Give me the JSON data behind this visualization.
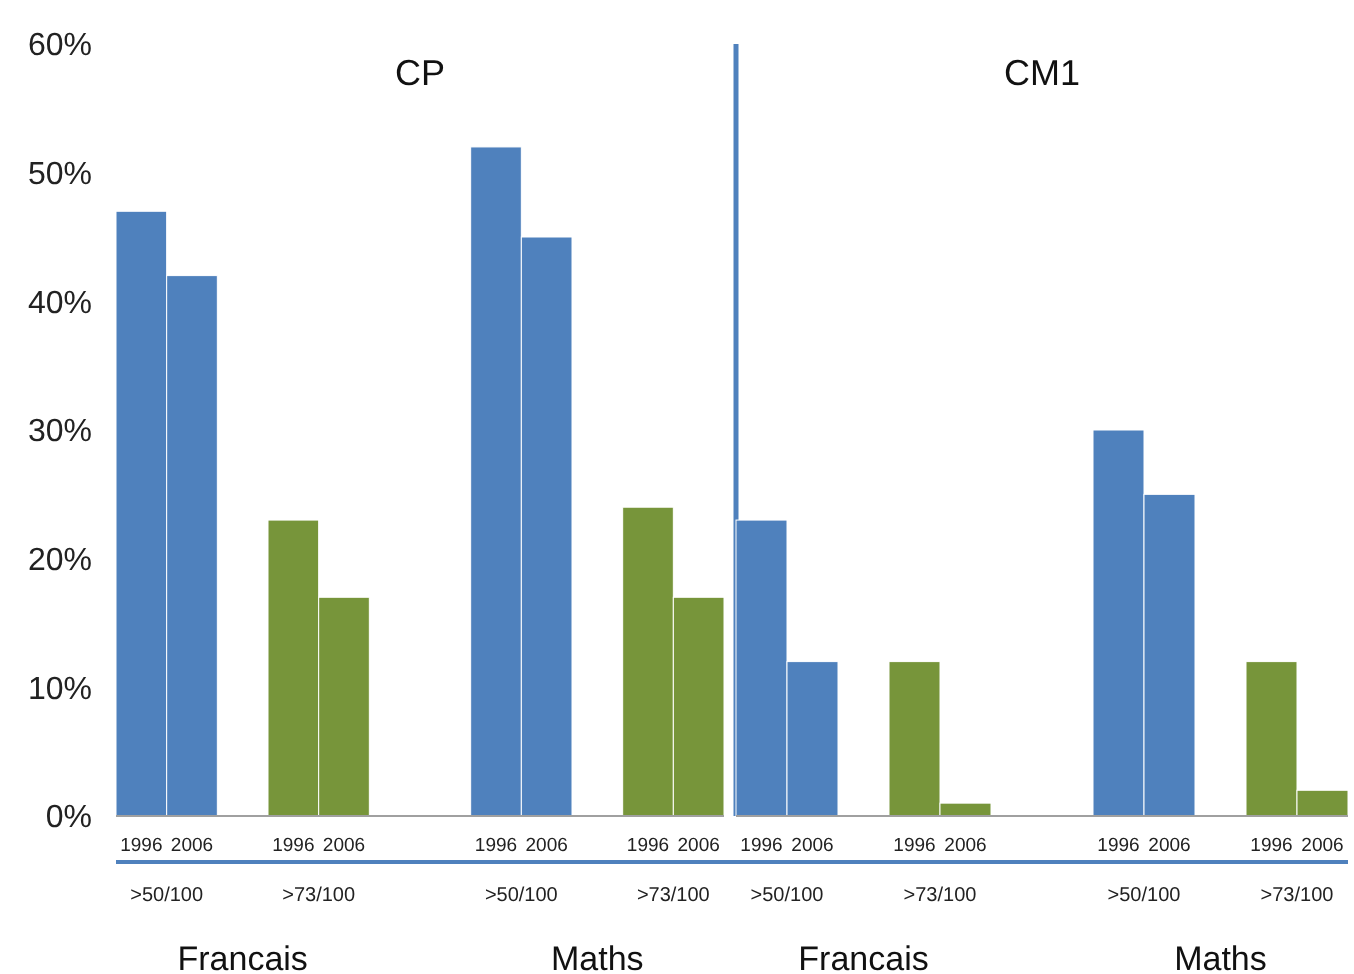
{
  "chart_data": [
    {
      "type": "bar",
      "title": "CP",
      "categories": [
        "1996",
        "2006",
        null,
        "1996",
        "2006",
        null,
        null,
        "1996",
        "2006",
        null,
        "1996",
        "2006"
      ],
      "values": [
        47,
        42,
        null,
        23,
        17,
        null,
        null,
        52,
        45,
        null,
        24,
        17
      ],
      "colors": [
        "#4f81bd",
        "#4f81bd",
        null,
        "#77953a",
        "#77953a",
        null,
        null,
        "#4f81bd",
        "#4f81bd",
        null,
        "#77953a",
        "#77953a"
      ],
      "ylim": [
        0,
        60
      ],
      "yticks": [
        {
          "value": 0,
          "label": "0%"
        },
        {
          "value": 10,
          "label": "10%"
        },
        {
          "value": 20,
          "label": "20%"
        },
        {
          "value": 30,
          "label": "30%"
        },
        {
          "value": 40,
          "label": "40%"
        },
        {
          "value": 50,
          "label": "50%"
        },
        {
          "value": 60,
          "label": "60%"
        }
      ],
      "annotations": [
        ">50/100",
        ">73/100",
        ">50/100",
        ">73/100",
        "Francais",
        "Maths"
      ]
    },
    {
      "type": "bar",
      "title": "CM1",
      "categories": [
        "1996",
        "2006",
        null,
        "1996",
        "2006",
        null,
        null,
        "1996",
        "2006",
        null,
        "1996",
        "2006"
      ],
      "values": [
        23,
        12,
        null,
        12,
        1,
        null,
        null,
        30,
        25,
        null,
        12,
        2
      ],
      "colors": [
        "#4f81bd",
        "#4f81bd",
        null,
        "#77953a",
        "#77953a",
        null,
        null,
        "#4f81bd",
        "#4f81bd",
        null,
        "#77953a",
        "#77953a"
      ],
      "ylim": [
        0,
        60
      ],
      "tick_labels": "x",
      "annotations": [
        ">50/100",
        ">73/100",
        ">50/100",
        ">73/100",
        "Francais",
        "Maths"
      ]
    }
  ]
}
